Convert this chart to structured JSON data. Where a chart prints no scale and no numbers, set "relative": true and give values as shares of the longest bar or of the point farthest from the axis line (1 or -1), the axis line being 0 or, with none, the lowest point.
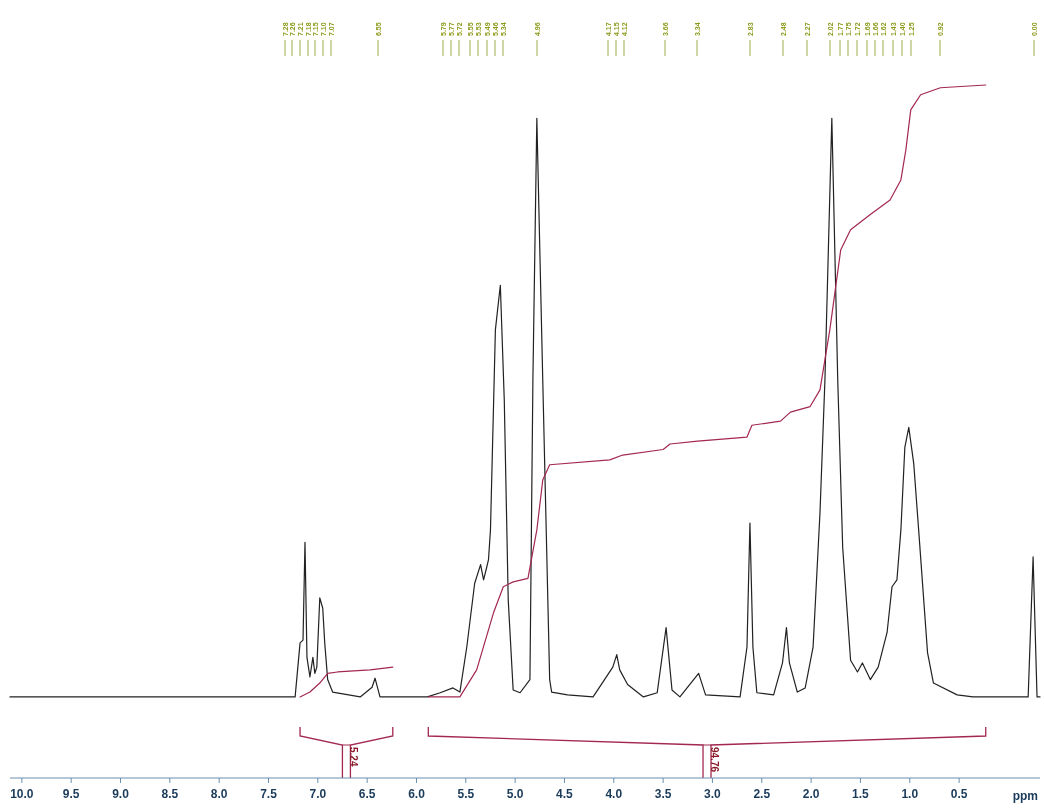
{
  "chart_data": {
    "type": "line",
    "relative": true,
    "xlabel": "ppm",
    "xlim": [
      10.12,
      -0.32
    ],
    "xticks": [
      {
        "value": 10,
        "label": "10.0"
      },
      9.5,
      {
        "value": 9,
        "label": "9.0"
      },
      8.5,
      {
        "value": 8,
        "label": "8.0"
      },
      7.5,
      {
        "value": 7,
        "label": "7.0"
      },
      6.5,
      {
        "value": 6,
        "label": "6.0"
      },
      5.5,
      {
        "value": 5,
        "label": "5.0"
      },
      4.5,
      {
        "value": 4,
        "label": "4.0"
      },
      3.5,
      {
        "value": 3,
        "label": "3.0"
      },
      2.5,
      {
        "value": 2,
        "label": "2.0"
      },
      1.5,
      {
        "value": 1,
        "label": "1.0"
      },
      0.5
    ],
    "series": [
      {
        "color": "#222222",
        "x": [
          10.12,
          7.69,
          7.23,
          7.18,
          7.15,
          7.13,
          7.11,
          7.08,
          7.05,
          7.03,
          7.01,
          6.98,
          6.95,
          6.93,
          6.9,
          6.85,
          6.57,
          6.45,
          6.42,
          6.37,
          5.89,
          5.76,
          5.63,
          5.56,
          5.49,
          5.41,
          5.35,
          5.32,
          5.29,
          5.27,
          5.25,
          5.2,
          5.15,
          5.11,
          5.07,
          5.02,
          4.95,
          4.85,
          4.82,
          4.78,
          4.72,
          4.65,
          4.63,
          4.47,
          4.21,
          4.01,
          3.97,
          3.94,
          3.86,
          3.7,
          3.56,
          3.47,
          3.41,
          3.33,
          3.14,
          3.07,
          2.72,
          2.65,
          2.62,
          2.59,
          2.55,
          2.38,
          2.29,
          2.25,
          2.22,
          2.14,
          2.06,
          1.98,
          1.91,
          1.86,
          1.79,
          1.73,
          1.68,
          1.6,
          1.53,
          1.48,
          1.4,
          1.32,
          1.23,
          1.18,
          1.13,
          1.09,
          1.05,
          1.01,
          0.96,
          0.91,
          0.82,
          0.76,
          0.52,
          0.36,
          -0.2,
          -0.25,
          -0.29,
          -0.32
        ],
        "values": [
          0.117,
          0.117,
          0.117,
          0.195,
          0.199,
          0.34,
          0.174,
          0.146,
          0.174,
          0.151,
          0.16,
          0.26,
          0.245,
          0.195,
          0.142,
          0.124,
          0.117,
          0.131,
          0.144,
          0.117,
          0.117,
          0.123,
          0.13,
          0.124,
          0.189,
          0.281,
          0.308,
          0.286,
          0.303,
          0.315,
          0.358,
          0.647,
          0.711,
          0.545,
          0.257,
          0.127,
          0.123,
          0.142,
          0.574,
          0.952,
          0.574,
          0.142,
          0.124,
          0.12,
          0.117,
          0.16,
          0.178,
          0.156,
          0.135,
          0.117,
          0.123,
          0.217,
          0.127,
          0.117,
          0.151,
          0.12,
          0.117,
          0.189,
          0.368,
          0.189,
          0.123,
          0.12,
          0.166,
          0.217,
          0.166,
          0.124,
          0.13,
          0.189,
          0.383,
          0.574,
          0.952,
          0.574,
          0.333,
          0.17,
          0.153,
          0.166,
          0.142,
          0.16,
          0.21,
          0.276,
          0.286,
          0.358,
          0.477,
          0.506,
          0.454,
          0.358,
          0.181,
          0.137,
          0.12,
          0.117,
          0.117,
          0.319,
          0.117,
          0.117
        ]
      },
      {
        "color": "#a3284f",
        "x": [
          7.18,
          7.08,
          6.98,
          6.9,
          6.8,
          6.47,
          6.24
        ],
        "values": [
          0.117,
          0.124,
          0.137,
          0.151,
          0.153,
          0.156,
          0.16
        ]
      },
      {
        "color": "#a3284f",
        "x": [
          5.88,
          5.56,
          5.39,
          5.22,
          5.12,
          5.02,
          4.87,
          4.78,
          4.72,
          4.65,
          4.04,
          3.91,
          3.5,
          3.43,
          3.15,
          2.65,
          2.6,
          2.31,
          2.21,
          2.01,
          1.91,
          1.81,
          1.7,
          1.6,
          1.4,
          1.2,
          1.09,
          1.04,
          0.99,
          0.89,
          0.69,
          0.23
        ],
        "values": [
          0.117,
          0.117,
          0.156,
          0.238,
          0.276,
          0.283,
          0.288,
          0.358,
          0.43,
          0.452,
          0.459,
          0.466,
          0.474,
          0.482,
          0.486,
          0.492,
          0.509,
          0.515,
          0.528,
          0.536,
          0.56,
          0.647,
          0.762,
          0.791,
          0.813,
          0.834,
          0.863,
          0.906,
          0.964,
          0.986,
          0.996,
          1
        ]
      }
    ],
    "annotations": [
      "7.28",
      "7.26",
      "7.21",
      "7.18",
      "7.15",
      "7.10",
      "7.07",
      "6.55",
      "5.79",
      "5.77",
      "5.72",
      "5.55",
      "5.53",
      "5.49",
      "5.46",
      "5.34",
      "4.96",
      "4.17",
      "4.15",
      "4.12",
      "3.66",
      "3.34",
      "2.83",
      "2.48",
      "2.27",
      "2.02",
      "1.77",
      "1.75",
      "1.72",
      "1.69",
      "1.66",
      "1.62",
      "1.43",
      "1.40",
      "1.25",
      "0.92",
      "0.00",
      "5.24",
      "94.76"
    ]
  }
}
